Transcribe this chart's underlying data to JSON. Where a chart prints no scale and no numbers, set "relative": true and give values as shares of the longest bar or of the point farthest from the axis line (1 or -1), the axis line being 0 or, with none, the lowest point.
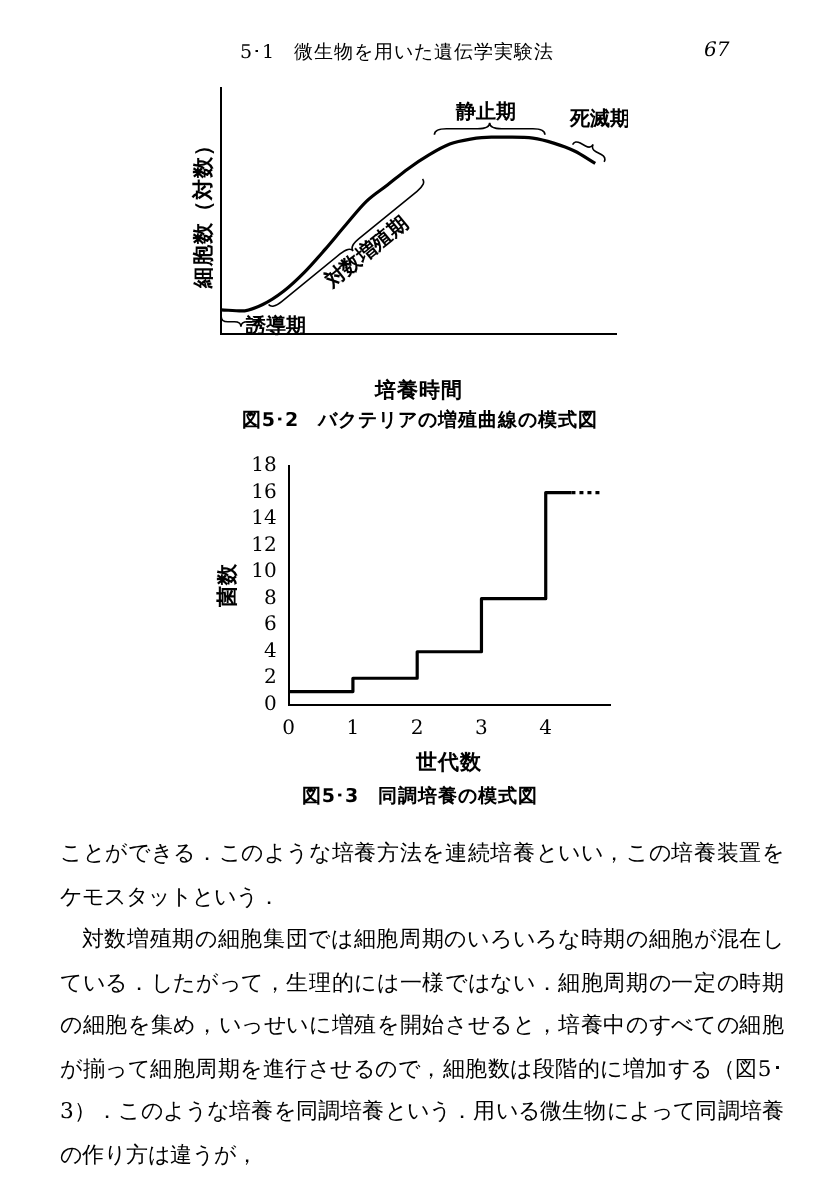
{
  "chart_data": [
    {
      "type": "line",
      "title": "図5･2　バクテリアの増殖曲線の模式図",
      "xlabel": "培養時間",
      "ylabel": "細胞数（対数）",
      "relative": true,
      "annotations": [
        "5･1　微生物を用いた遺伝学実験法",
        "67",
        "誘導期",
        "対数増殖期",
        "静止期",
        "死滅期"
      ],
      "categories": [
        null,
        null,
        null,
        null,
        null,
        null,
        null,
        null,
        null,
        null,
        null,
        null,
        null,
        null,
        null,
        null,
        null,
        null,
        null,
        null
      ],
      "values": [
        0.123,
        0.117,
        0.15,
        0.217,
        0.313,
        0.43,
        0.555,
        0.675,
        0.757,
        0.84,
        0.91,
        0.965,
        0.99,
        1,
        1,
        0.995,
        0.97,
        0.93,
        0.867,
        null
      ],
      "color": "#000000"
    },
    {
      "type": "step",
      "title": "図5･3　同調培養の模式図",
      "xlabel": "世代数",
      "ylabel": "菌数",
      "xlim": [
        0,
        5
      ],
      "xticks": [
        0,
        1,
        2,
        3,
        4
      ],
      "ylim": [
        0,
        18
      ],
      "yticks": [
        0,
        2,
        4,
        6,
        8,
        10,
        12,
        14,
        16,
        18
      ],
      "annotations": [
        "ことができる．このような培養方法を連続培養といい，この培養装置をケモスタットという．",
        "対数増殖期の細胞集団では細胞周期のいろいろな時期の細胞が混在している．したがって，生理的には一様ではない．細胞周期の一定の時期の細胞を集め，いっせいに増殖を開始させると，培養中のすべての細胞が揃って細胞周期を進行させるので，細胞数は段階的に増加する（図5･3）．このような培養を同調培養という．用いる微生物によって同調培養の作り方は違うが，"
      ],
      "series": [
        {
          "x": [
            0,
            1,
            2,
            3,
            4,
            4.4
          ],
          "values": [
            1,
            2,
            4,
            8,
            16,
            16
          ],
          "color": "#000000"
        },
        {
          "type": "line",
          "x": [
            4.4,
            4.85
          ],
          "values": [
            16,
            16
          ],
          "line_style": "dotted",
          "color": "#000000"
        }
      ]
    }
  ]
}
